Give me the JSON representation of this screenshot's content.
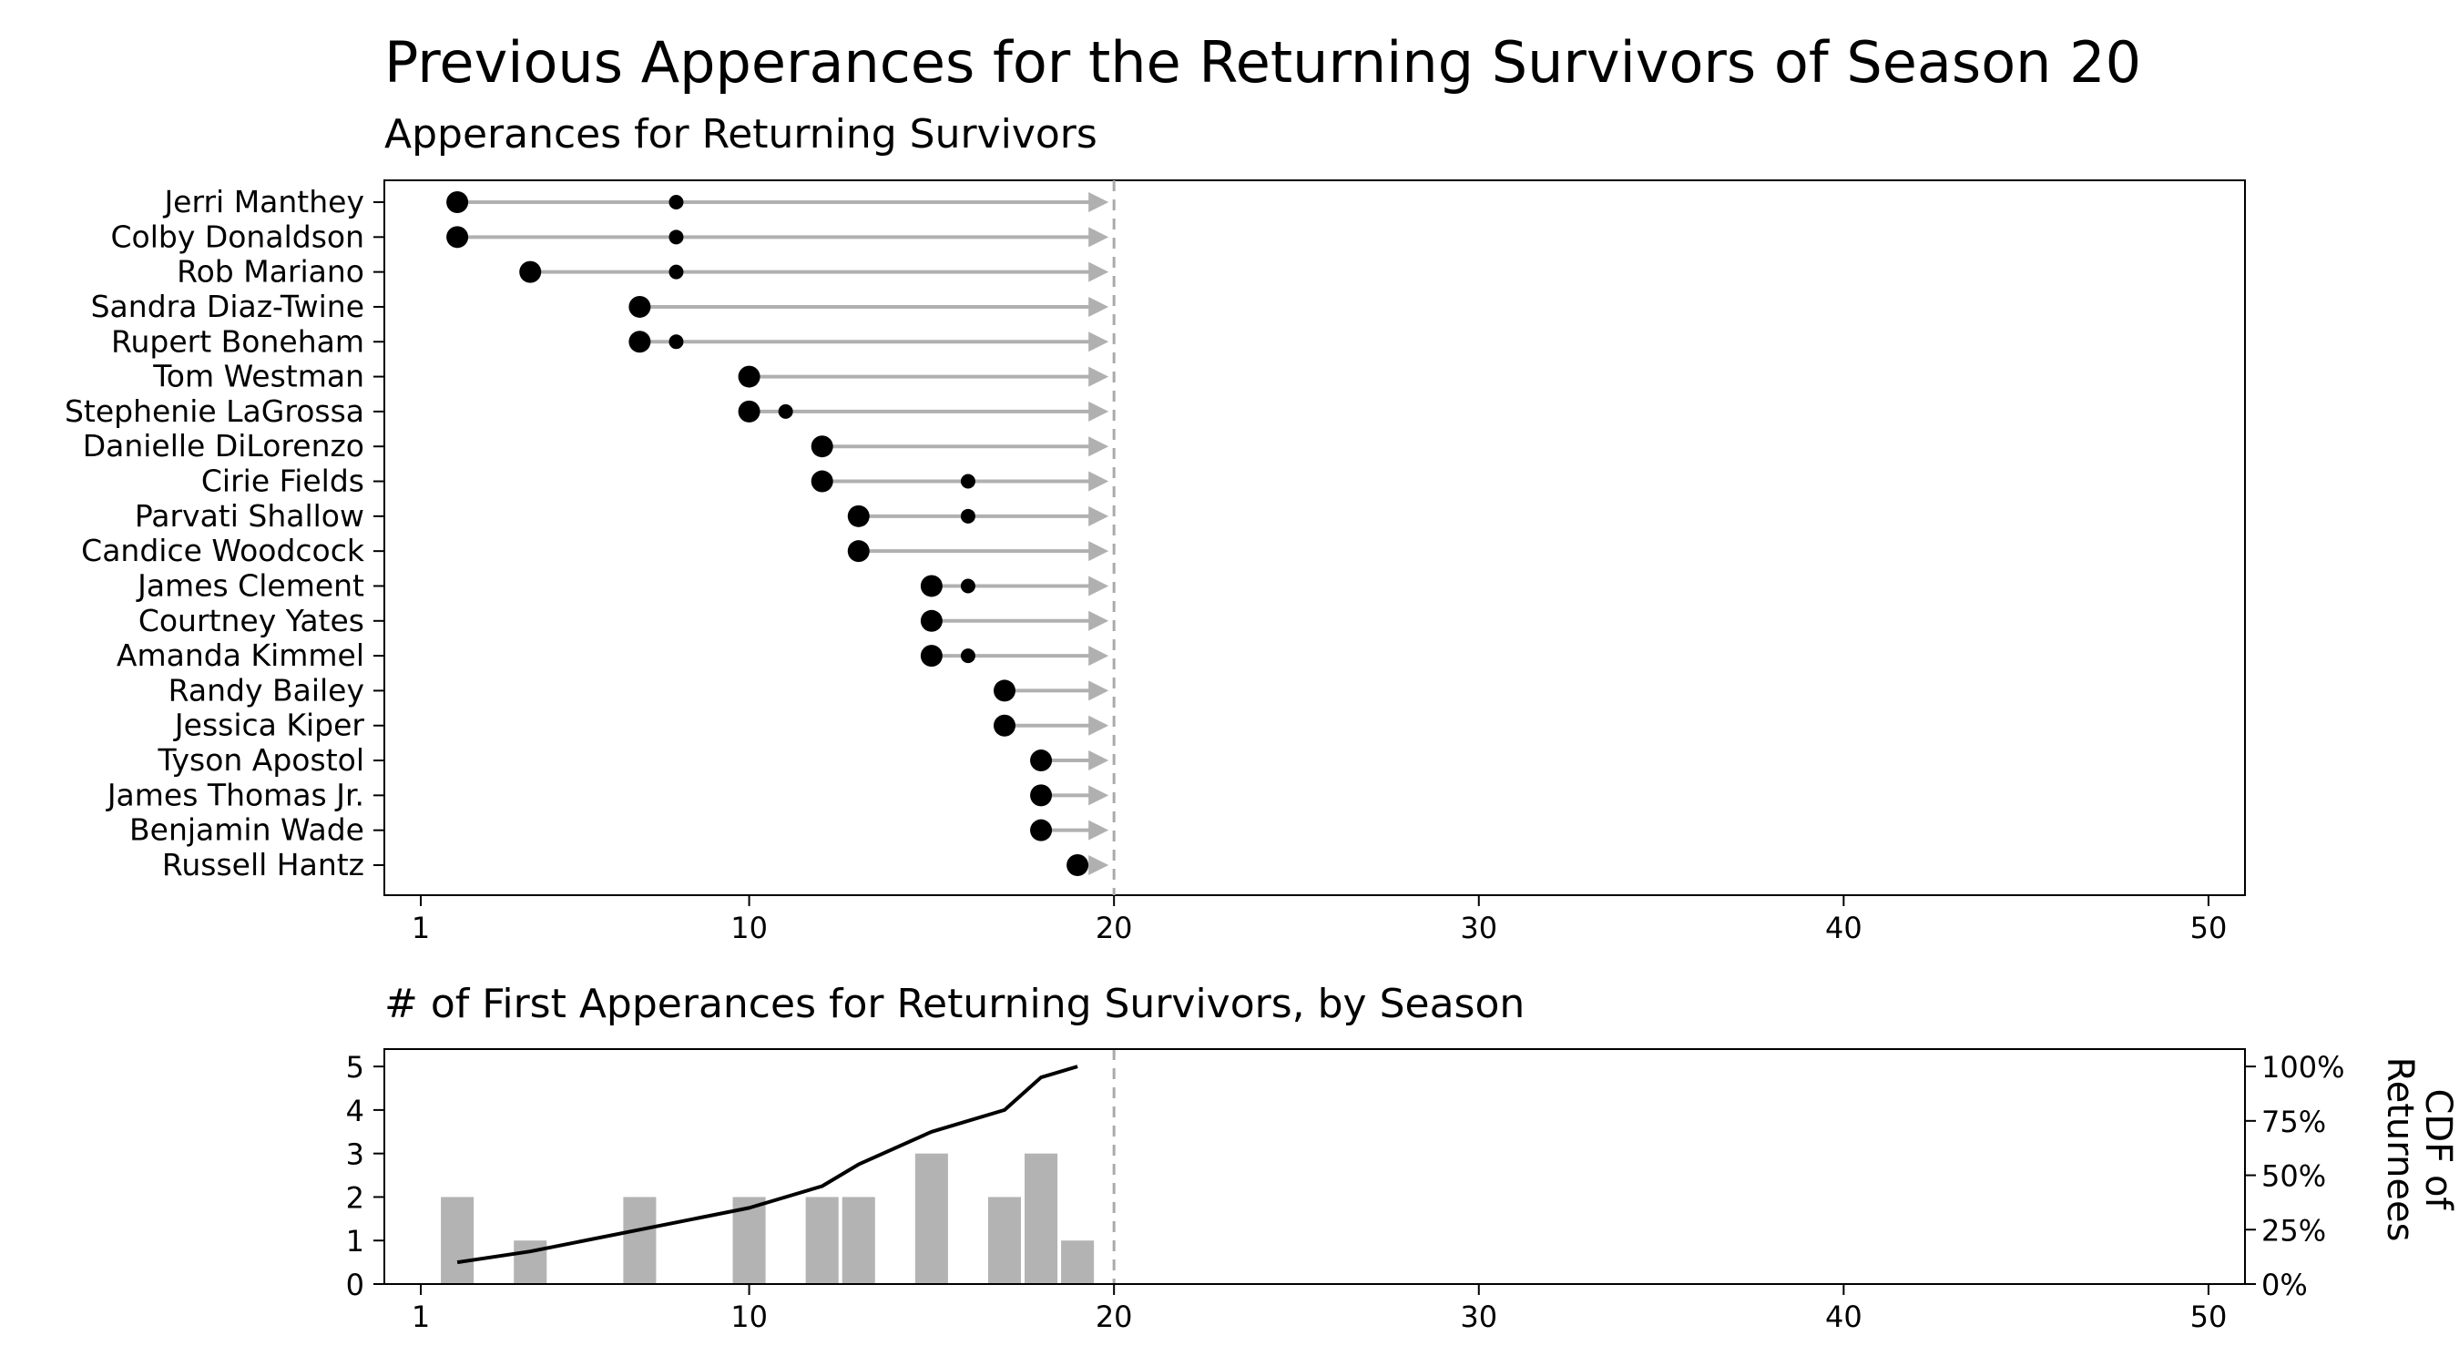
{
  "title": "Previous Apperances for the Returning Survivors of Season 20",
  "colors": {
    "arrow": "#b0b0b0",
    "bar": "#b3b3b3",
    "dot": "#000000",
    "line": "#000000",
    "frame": "#000000",
    "current_season_line": "#aaaaaa"
  },
  "chart_data": [
    {
      "type": "scatter",
      "title": "Apperances for Returning Survivors",
      "xlim": [
        0,
        51
      ],
      "x_ticks": [
        1,
        10,
        20,
        30,
        40,
        50
      ],
      "current_season": 20,
      "legend": "none",
      "grid": false,
      "survivors": [
        {
          "name": "Jerri Manthey",
          "first": 2,
          "other": [
            8
          ]
        },
        {
          "name": "Colby Donaldson",
          "first": 2,
          "other": [
            8
          ]
        },
        {
          "name": "Rob Mariano",
          "first": 4,
          "other": [
            8
          ]
        },
        {
          "name": "Sandra Diaz-Twine",
          "first": 7,
          "other": []
        },
        {
          "name": "Rupert Boneham",
          "first": 7,
          "other": [
            8
          ]
        },
        {
          "name": "Tom Westman",
          "first": 10,
          "other": []
        },
        {
          "name": "Stephenie LaGrossa",
          "first": 10,
          "other": [
            11
          ]
        },
        {
          "name": "Danielle DiLorenzo",
          "first": 12,
          "other": []
        },
        {
          "name": "Cirie Fields",
          "first": 12,
          "other": [
            16
          ]
        },
        {
          "name": "Parvati Shallow",
          "first": 13,
          "other": [
            16
          ]
        },
        {
          "name": "Candice Woodcock",
          "first": 13,
          "other": []
        },
        {
          "name": "James Clement",
          "first": 15,
          "other": [
            16
          ]
        },
        {
          "name": "Courtney Yates",
          "first": 15,
          "other": []
        },
        {
          "name": "Amanda Kimmel",
          "first": 15,
          "other": [
            16
          ]
        },
        {
          "name": "Randy Bailey",
          "first": 17,
          "other": []
        },
        {
          "name": "Jessica Kiper",
          "first": 17,
          "other": []
        },
        {
          "name": "Tyson Apostol",
          "first": 18,
          "other": []
        },
        {
          "name": "James Thomas Jr.",
          "first": 18,
          "other": []
        },
        {
          "name": "Benjamin Wade",
          "first": 18,
          "other": []
        },
        {
          "name": "Russell Hantz",
          "first": 19,
          "other": []
        }
      ]
    },
    {
      "type": "bar",
      "title": "# of First Apperances for Returning Survivors, by Season",
      "xlim": [
        0,
        51
      ],
      "x_ticks": [
        1,
        10,
        20,
        30,
        40,
        50
      ],
      "ylim": [
        0,
        5.4
      ],
      "y_ticks": [
        0,
        1,
        2,
        3,
        4,
        5
      ],
      "y2label": "CDF of\nReturnees",
      "y2_ticks": [
        "0%",
        "25%",
        "50%",
        "75%",
        "100%"
      ],
      "current_season": 20,
      "x": [
        2,
        4,
        7,
        10,
        12,
        13,
        15,
        17,
        18,
        19
      ],
      "values": [
        2,
        1,
        2,
        2,
        2,
        2,
        3,
        2,
        3,
        1
      ],
      "cdf": [
        0.1,
        0.15,
        0.25,
        0.35,
        0.45,
        0.55,
        0.7,
        0.8,
        0.95,
        1.0
      ]
    }
  ]
}
